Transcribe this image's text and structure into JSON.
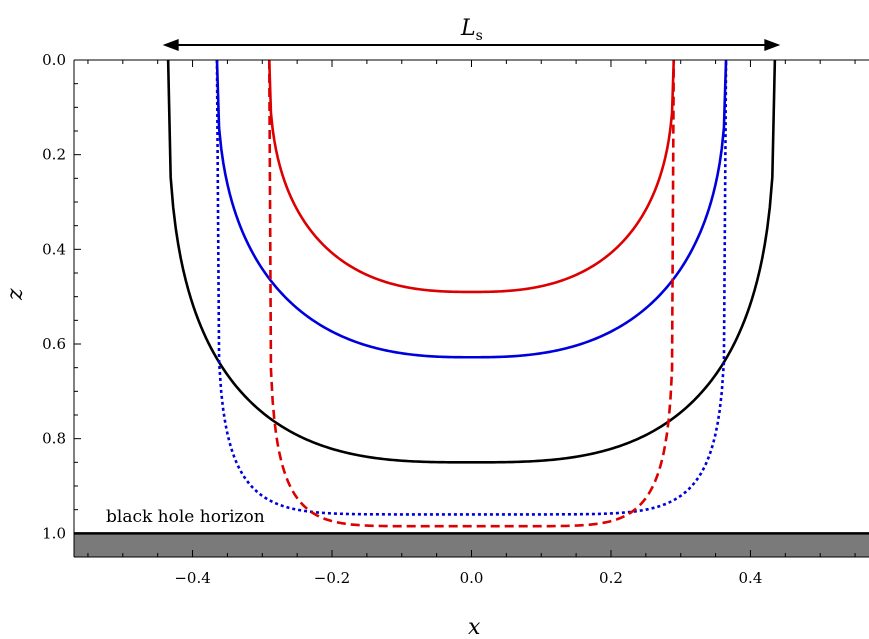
{
  "chart_data": {
    "type": "line",
    "xlabel": "x",
    "ylabel": "z",
    "xlim": [
      -0.57,
      0.57
    ],
    "ylim": [
      0.0,
      1.05
    ],
    "y_inverted": true,
    "x_ticks": [
      -0.4,
      -0.2,
      0.0,
      0.2,
      0.4
    ],
    "x_tick_labels": [
      "−0.4",
      "−0.2",
      "0.0",
      "0.2",
      "0.4"
    ],
    "y_ticks": [
      0.0,
      0.2,
      0.4,
      0.6,
      0.8,
      1.0
    ],
    "y_tick_labels": [
      "0.0",
      "0.2",
      "0.4",
      "0.6",
      "0.8",
      "1.0"
    ],
    "grid": false,
    "annotations": {
      "horizon_label": "black hole horizon",
      "horizon_z": 1.0,
      "width_label": "L",
      "width_label_sub": "s",
      "width_arrow_x": [
        -0.44,
        0.44
      ]
    },
    "series": [
      {
        "color": "#000000",
        "style": "solid",
        "x_end": 0.435,
        "z_tip": 0.85,
        "shape": 3.0
      },
      {
        "color": "#0000dd",
        "style": "solid",
        "x_end": 0.365,
        "z_tip": 0.628,
        "shape": 2.6
      },
      {
        "color": "#dd0000",
        "style": "solid",
        "x_end": 0.29,
        "z_tip": 0.49,
        "shape": 2.6
      },
      {
        "color": "#0000dd",
        "style": "dotted",
        "x_end": 0.365,
        "z_tip": 0.96,
        "shape": 7.0
      },
      {
        "color": "#dd0000",
        "style": "dashed",
        "x_end": 0.29,
        "z_tip": 0.985,
        "shape": 7.0
      }
    ]
  }
}
